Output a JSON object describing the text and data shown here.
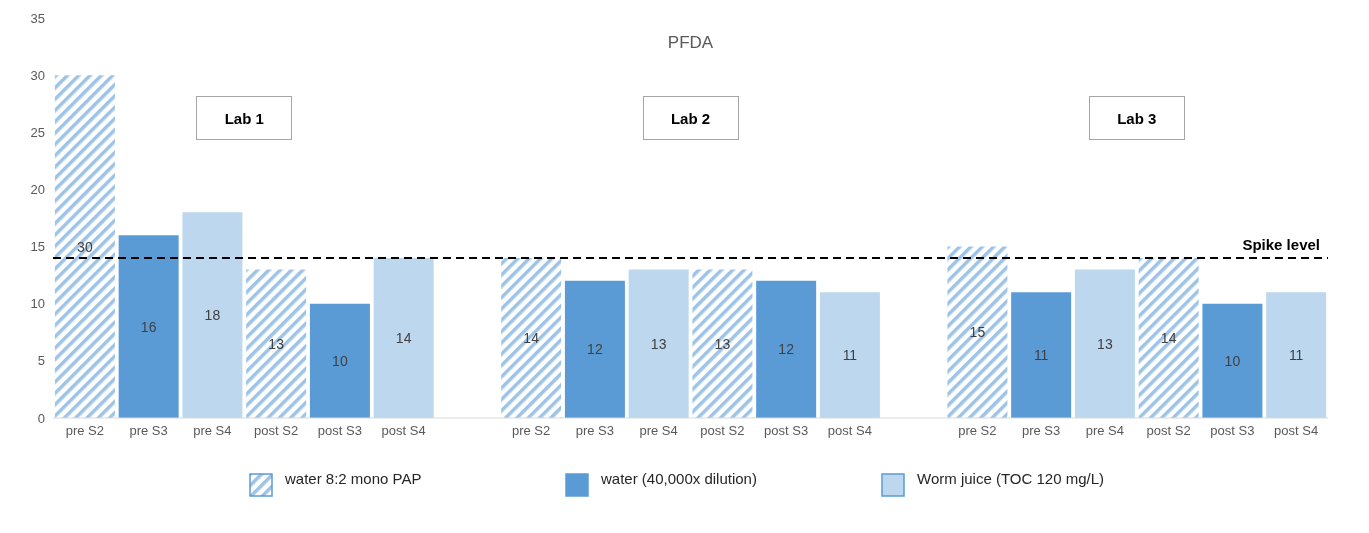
{
  "chart_data": {
    "type": "bar",
    "title": "PFDA",
    "categories": [
      "pre S2",
      "pre S3",
      "pre S4",
      "post S2",
      "post S3",
      "post S4",
      null,
      "pre S2",
      "pre S3",
      "pre S4",
      "post S2",
      "post S3",
      "post S4",
      null,
      "pre S2",
      "pre S3",
      "pre S4",
      "post S2",
      "post S3",
      "post S4"
    ],
    "series": [
      {
        "name": "water 8:2 mono PAP",
        "color": "#9dc3e6",
        "values": [
          30,
          null,
          null,
          13,
          null,
          null,
          null,
          14,
          null,
          null,
          13,
          null,
          null,
          null,
          15,
          null,
          null,
          14,
          null,
          null
        ]
      },
      {
        "name": "water (40,000x dilution)",
        "color": "#5b9bd5",
        "values": [
          null,
          16,
          null,
          null,
          10,
          null,
          null,
          null,
          12,
          null,
          null,
          12,
          null,
          null,
          null,
          11,
          null,
          null,
          10,
          null
        ]
      },
      {
        "name": "Worm juice (TOC 120 mg/L)",
        "color": "#bdd7ee",
        "values": [
          null,
          null,
          18,
          null,
          null,
          14,
          null,
          null,
          null,
          13,
          null,
          null,
          11,
          null,
          null,
          null,
          13,
          null,
          null,
          11
        ]
      }
    ],
    "ylim": [
      0,
      35
    ],
    "yticks": [
      0,
      5,
      10,
      15,
      20,
      25,
      30,
      35
    ],
    "grid": false,
    "legend": "bottom",
    "data_labels": true,
    "ref_lines": [
      {
        "axis": "y",
        "value": 14,
        "label": "Spike level",
        "color": "#000000",
        "line_style": "dashed"
      }
    ],
    "annotations": [
      "Lab 1",
      "Lab 2",
      "Lab 3"
    ]
  }
}
